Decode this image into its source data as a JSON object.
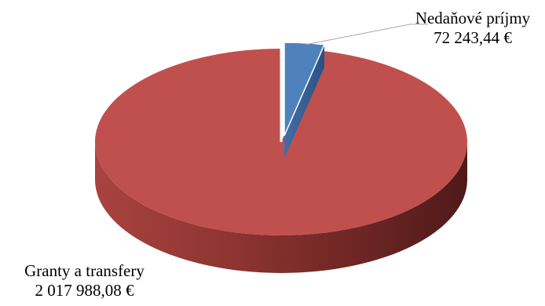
{
  "chart_data": {
    "type": "pie",
    "style": "3d-exploded",
    "title": "",
    "slices": [
      {
        "label": "Nedaňové príjmy",
        "value": 72243.44,
        "value_label": "72 243,44  €",
        "color": "#4F81BD"
      },
      {
        "label": "Granty a transfery",
        "value": 2017988.08,
        "value_label": "2 017 988,08  €",
        "color": "#C0504D"
      }
    ],
    "legend": "none"
  }
}
